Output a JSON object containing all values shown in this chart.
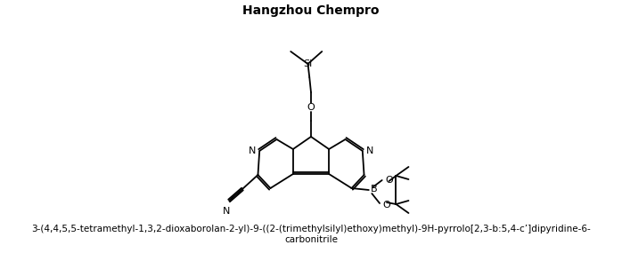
{
  "title": "Hangzhou Chempro",
  "title_fontsize": 10,
  "title_fontweight": "bold",
  "caption_line1": "3-(4,4,5,5-tetramethyl-1,3,2-dioxaborolan-2-yl)-9-((2-(trimethylsilyl)ethoxy)methyl)-9H-pyrrolo[2,3-b:5,4-c’]dipyridine-6-",
  "caption_line2": "carbonitrile",
  "caption_fontsize": 7.5,
  "bg_color": "#ffffff",
  "line_color": "#000000",
  "lw": 1.3
}
